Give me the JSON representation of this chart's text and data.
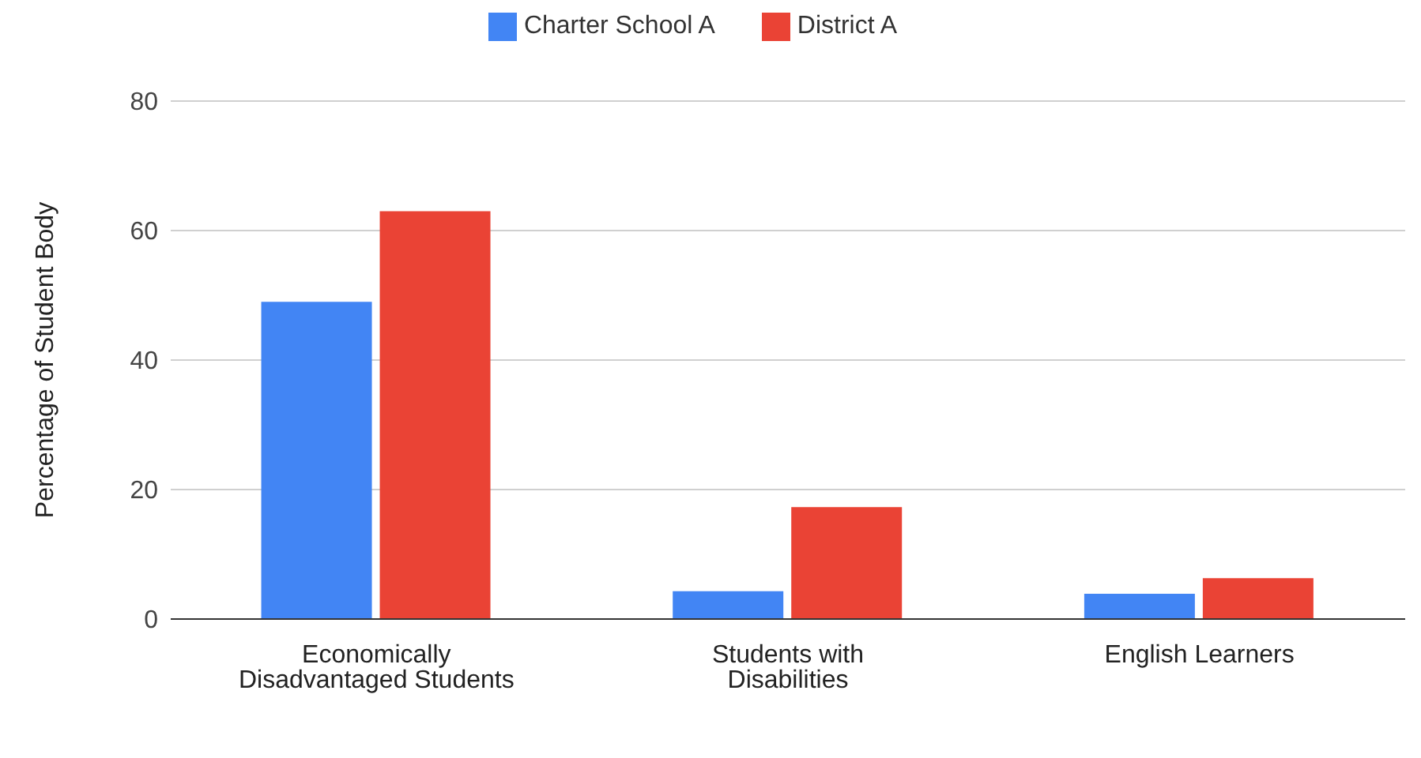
{
  "chart_data": {
    "type": "bar",
    "ylabel": "Percentage of Student Body",
    "categories": [
      "Economically Disadvantaged Students",
      "Students with Disabilities",
      "English Learners"
    ],
    "series": [
      {
        "name": "Charter School A",
        "color": "#4285f4",
        "values": [
          49,
          4.3,
          3.9
        ]
      },
      {
        "name": "District A",
        "color": "#ea4335",
        "values": [
          63,
          17.3,
          6.3
        ]
      }
    ],
    "ylim": [
      0,
      80
    ],
    "yticks": [
      0,
      20,
      40,
      60,
      80
    ],
    "grid": "y",
    "legend": "top"
  }
}
